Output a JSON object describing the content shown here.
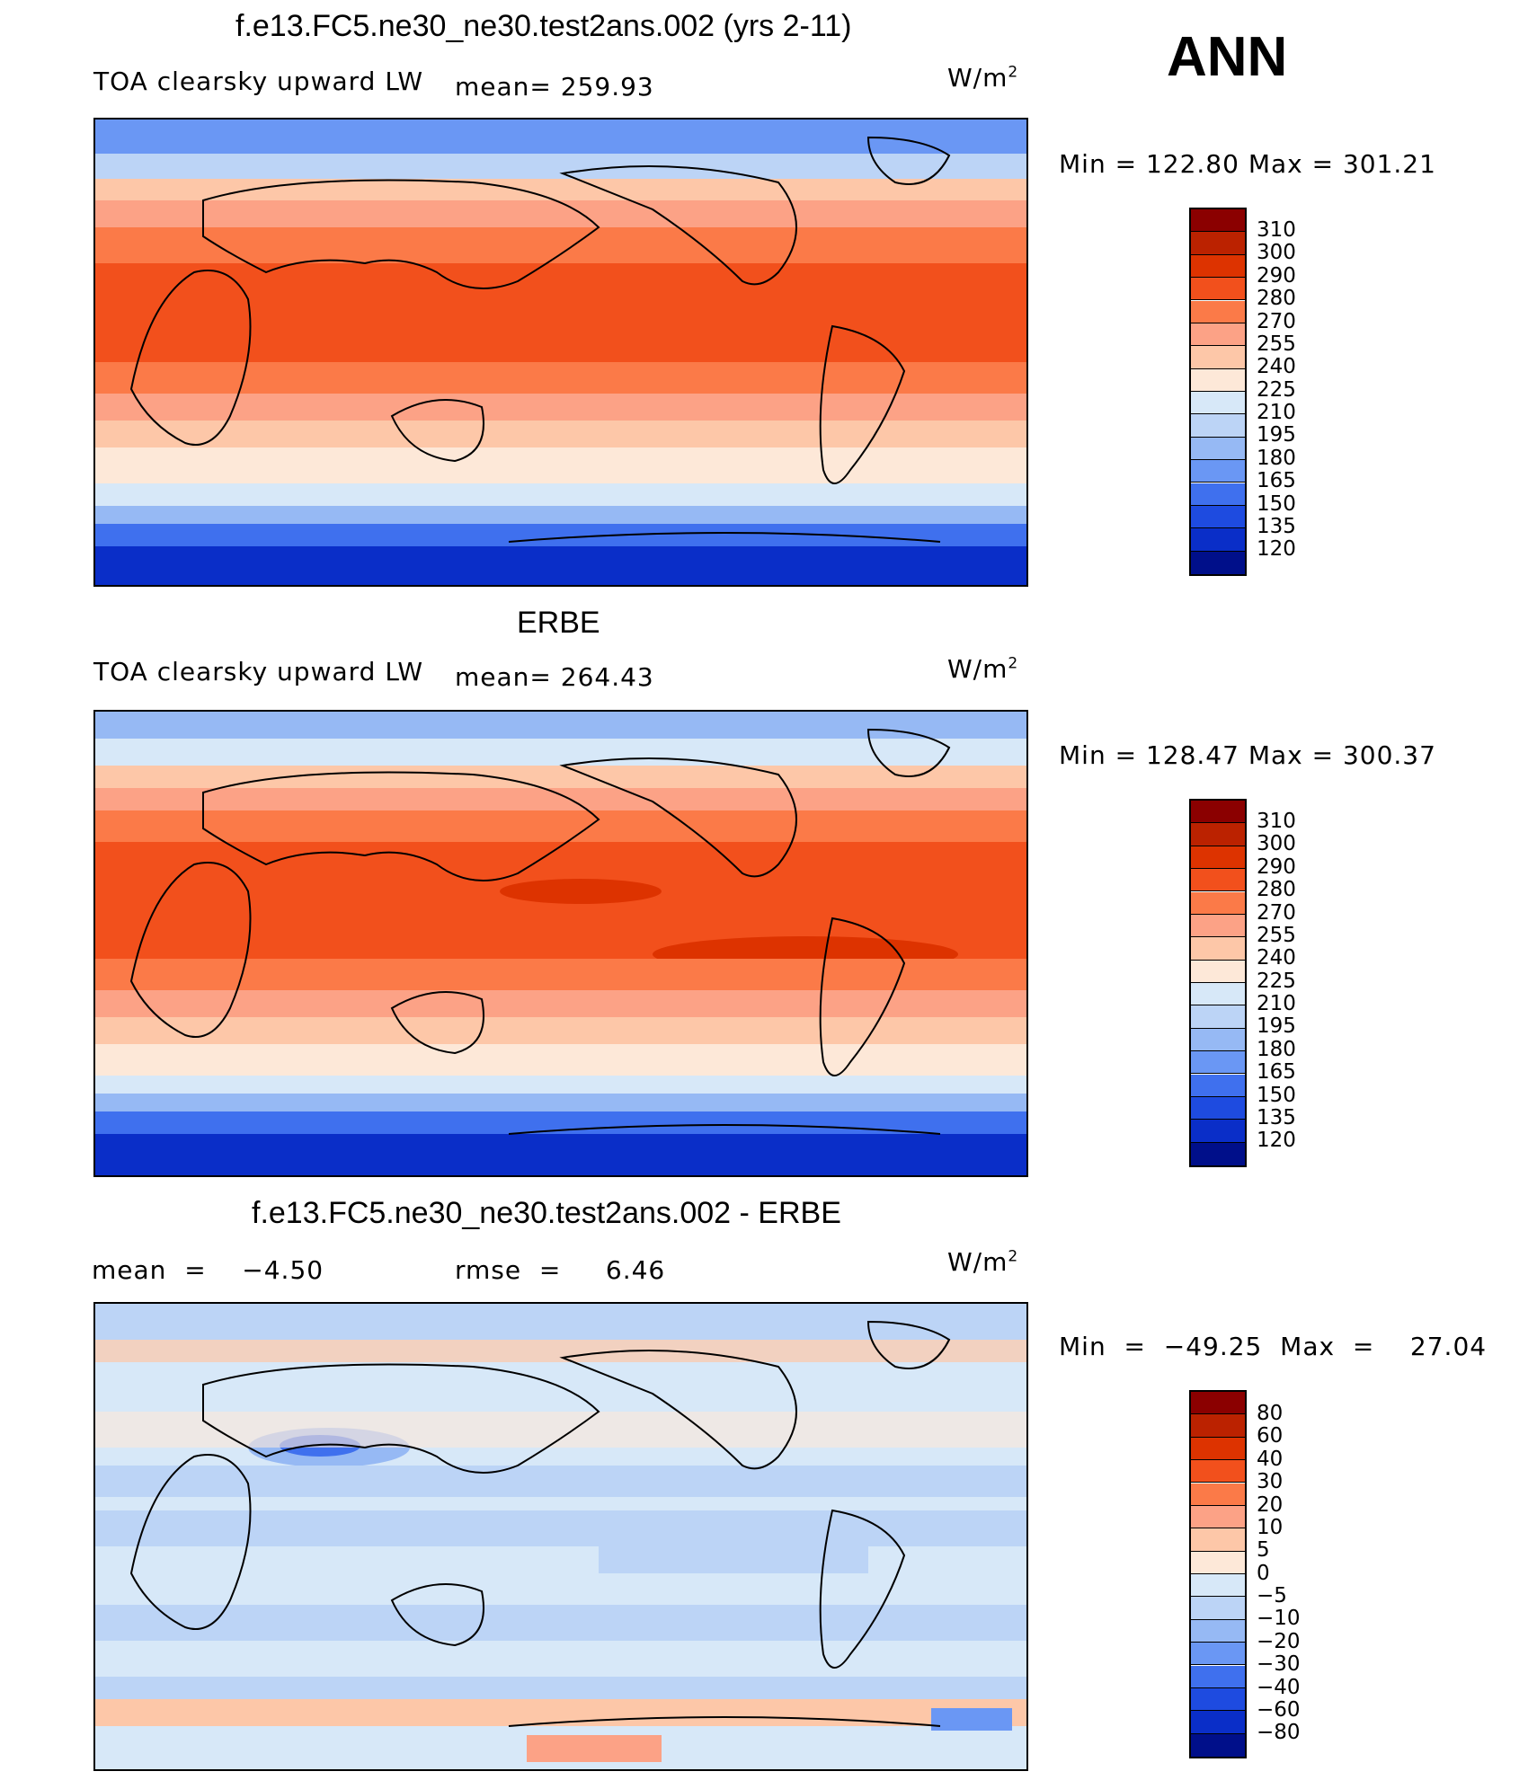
{
  "season": "ANN",
  "units": "W/m",
  "units_exp": "2",
  "panels": [
    {
      "title": "f.e13.FC5.ne30_ne30.test2ans.002 (yrs 2-11)",
      "variable": "TOA clearsky upward LW",
      "stat": "mean=  259.93",
      "minmax": "Min  =  122.80  Max  =  301.21"
    },
    {
      "title": "ERBE",
      "variable": "TOA clearsky upward LW",
      "stat": "mean=  264.43",
      "minmax": "Min  =  128.47  Max  =  300.37"
    },
    {
      "title": "f.e13.FC5.ne30_ne30.test2ans.002 - ERBE",
      "mean": "mean  =    −4.50",
      "rmse": "rmse  =     6.46",
      "minmax": "Min  =  −49.25  Max  =    27.04"
    }
  ],
  "colorbars": {
    "absolute": {
      "labels": [
        "310",
        "300",
        "290",
        "280",
        "270",
        "255",
        "240",
        "225",
        "210",
        "195",
        "180",
        "165",
        "150",
        "135",
        "120"
      ],
      "colors": [
        "#8b0000",
        "#bb2200",
        "#dd3300",
        "#f2501c",
        "#fb7a48",
        "#fca286",
        "#fdc7a8",
        "#fde8d8",
        "#d7e8f8",
        "#bcd4f6",
        "#96b9f4",
        "#6a97f4",
        "#3f70ee",
        "#1e4be0",
        "#0a2ec8",
        "#000f8a"
      ]
    },
    "difference": {
      "labels": [
        "80",
        "60",
        "40",
        "30",
        "20",
        "10",
        "5",
        "0",
        "−5",
        "−10",
        "−20",
        "−30",
        "−40",
        "−60",
        "−80"
      ],
      "colors": [
        "#8b0000",
        "#bb2200",
        "#dd3300",
        "#f2501c",
        "#fb7a48",
        "#fca286",
        "#fdc7a8",
        "#fde8d8",
        "#d7e8f8",
        "#bcd4f6",
        "#96b9f4",
        "#6a97f4",
        "#3f70ee",
        "#1e4be0",
        "#0a2ec8",
        "#000f8a"
      ]
    }
  }
}
